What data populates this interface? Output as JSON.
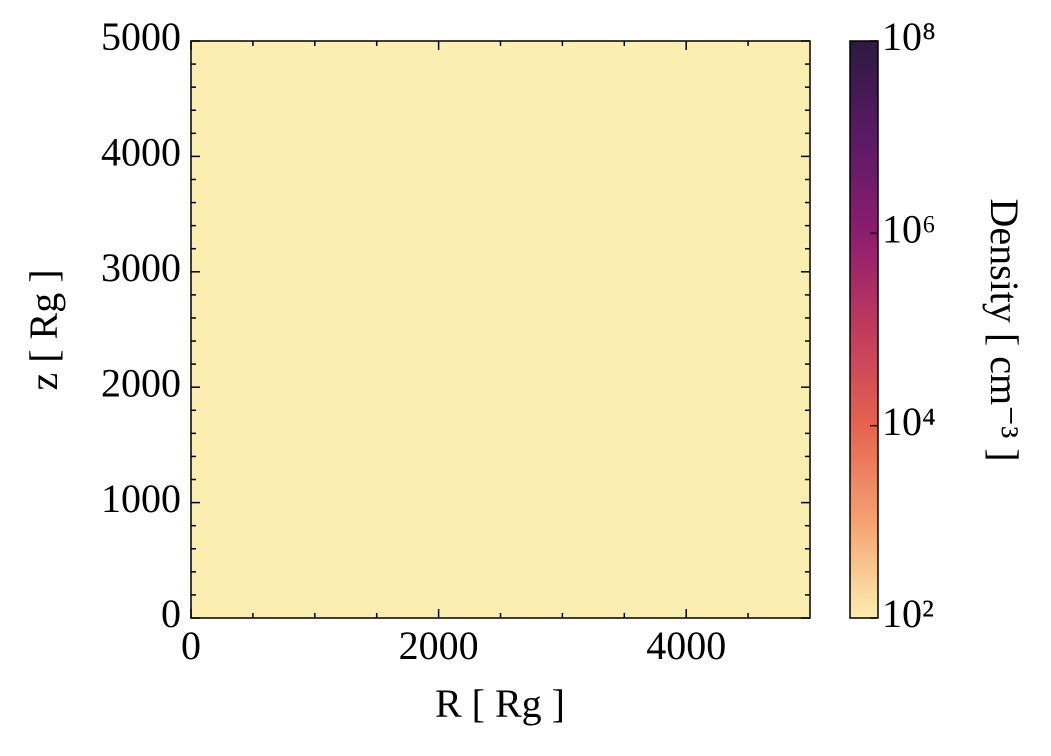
{
  "chart_data": {
    "type": "heatmap",
    "xlabel": "R [ Rg ]",
    "ylabel": "z [ Rg ]",
    "xlim": [
      0,
      5000
    ],
    "ylim": [
      0,
      5000
    ],
    "xticks": [
      0,
      2000,
      4000
    ],
    "yticks": [
      0,
      1000,
      2000,
      3000,
      4000,
      5000
    ],
    "xminorticks": [
      500,
      1000,
      1500,
      2500,
      3000,
      3500,
      4500
    ],
    "yminorticks": [
      200,
      400,
      600,
      800,
      1200,
      1400,
      1600,
      1800,
      2200,
      2400,
      2600,
      2800,
      3200,
      3400,
      3600,
      3800,
      4200,
      4400,
      4600,
      4800
    ],
    "z": [
      [
        100
      ]
    ],
    "colorbar": {
      "label": "Density [ cm⁻³ ]",
      "log": true,
      "lim": [
        100,
        100000000
      ],
      "ticks": [
        {
          "value": 100,
          "label": "10²"
        },
        {
          "value": 10000,
          "label": "10⁴"
        },
        {
          "value": 1000000,
          "label": "10⁶"
        },
        {
          "value": 100000000,
          "label": "10⁸"
        }
      ],
      "colors": [
        "#fcedb0",
        "#f5a271",
        "#e5634f",
        "#c03a5e",
        "#8c1d6f",
        "#5a1a65",
        "#2d1a3e"
      ]
    }
  }
}
